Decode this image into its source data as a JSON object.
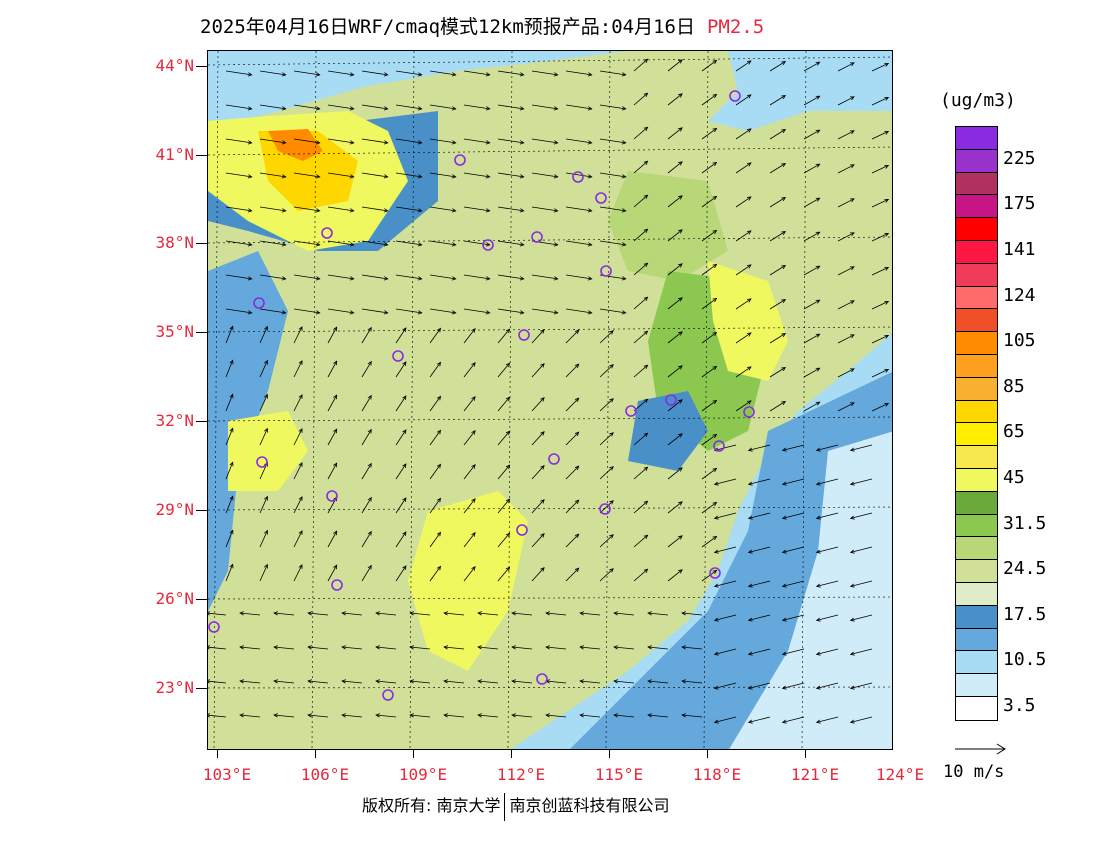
{
  "title": {
    "text": "2025年04月16日WRF/cmaq模式12km预报产品:04月16日",
    "pollutant": "PM2.5"
  },
  "map": {
    "lat_labels": [
      "44°N",
      "41°N",
      "38°N",
      "35°N",
      "32°N",
      "29°N",
      "26°N",
      "23°N"
    ],
    "lon_labels": [
      "103°E",
      "106°E",
      "109°E",
      "112°E",
      "115°E",
      "118°E",
      "121°E",
      "124°E"
    ]
  },
  "legend": {
    "unit": "(ug/m3)",
    "items": [
      {
        "color": "#8a2be2",
        "label": ""
      },
      {
        "color": "#9932cc",
        "label": "225"
      },
      {
        "color": "#b03060",
        "label": ""
      },
      {
        "color": "#c71585",
        "label": "175"
      },
      {
        "color": "#ff0000",
        "label": ""
      },
      {
        "color": "#ff1744",
        "label": "141"
      },
      {
        "color": "#f03c5a",
        "label": ""
      },
      {
        "color": "#ff6a6a",
        "label": "124"
      },
      {
        "color": "#f05028",
        "label": ""
      },
      {
        "color": "#ff8c00",
        "label": "105"
      },
      {
        "color": "#ffa020",
        "label": ""
      },
      {
        "color": "#f8b030",
        "label": "85"
      },
      {
        "color": "#ffd700",
        "label": ""
      },
      {
        "color": "#ffee00",
        "label": "65"
      },
      {
        "color": "#f8e850",
        "label": ""
      },
      {
        "color": "#f0f860",
        "label": "45"
      },
      {
        "color": "#6aaa3a",
        "label": ""
      },
      {
        "color": "#8cc850",
        "label": "31.5"
      },
      {
        "color": "#b8d878",
        "label": ""
      },
      {
        "color": "#d0e098",
        "label": "24.5"
      },
      {
        "color": "#e0ecc8",
        "label": ""
      },
      {
        "color": "#4a90c8",
        "label": "17.5"
      },
      {
        "color": "#64a8dc",
        "label": ""
      },
      {
        "color": "#a8dcf4",
        "label": "10.5"
      },
      {
        "color": "#d0ecf8",
        "label": ""
      },
      {
        "color": "#ffffff",
        "label": "3.5"
      }
    ],
    "wind_reference": "10 m/s"
  },
  "footer": {
    "copyright": "版权所有: 南京大学",
    "company": "南京创蓝科技有限公司"
  }
}
